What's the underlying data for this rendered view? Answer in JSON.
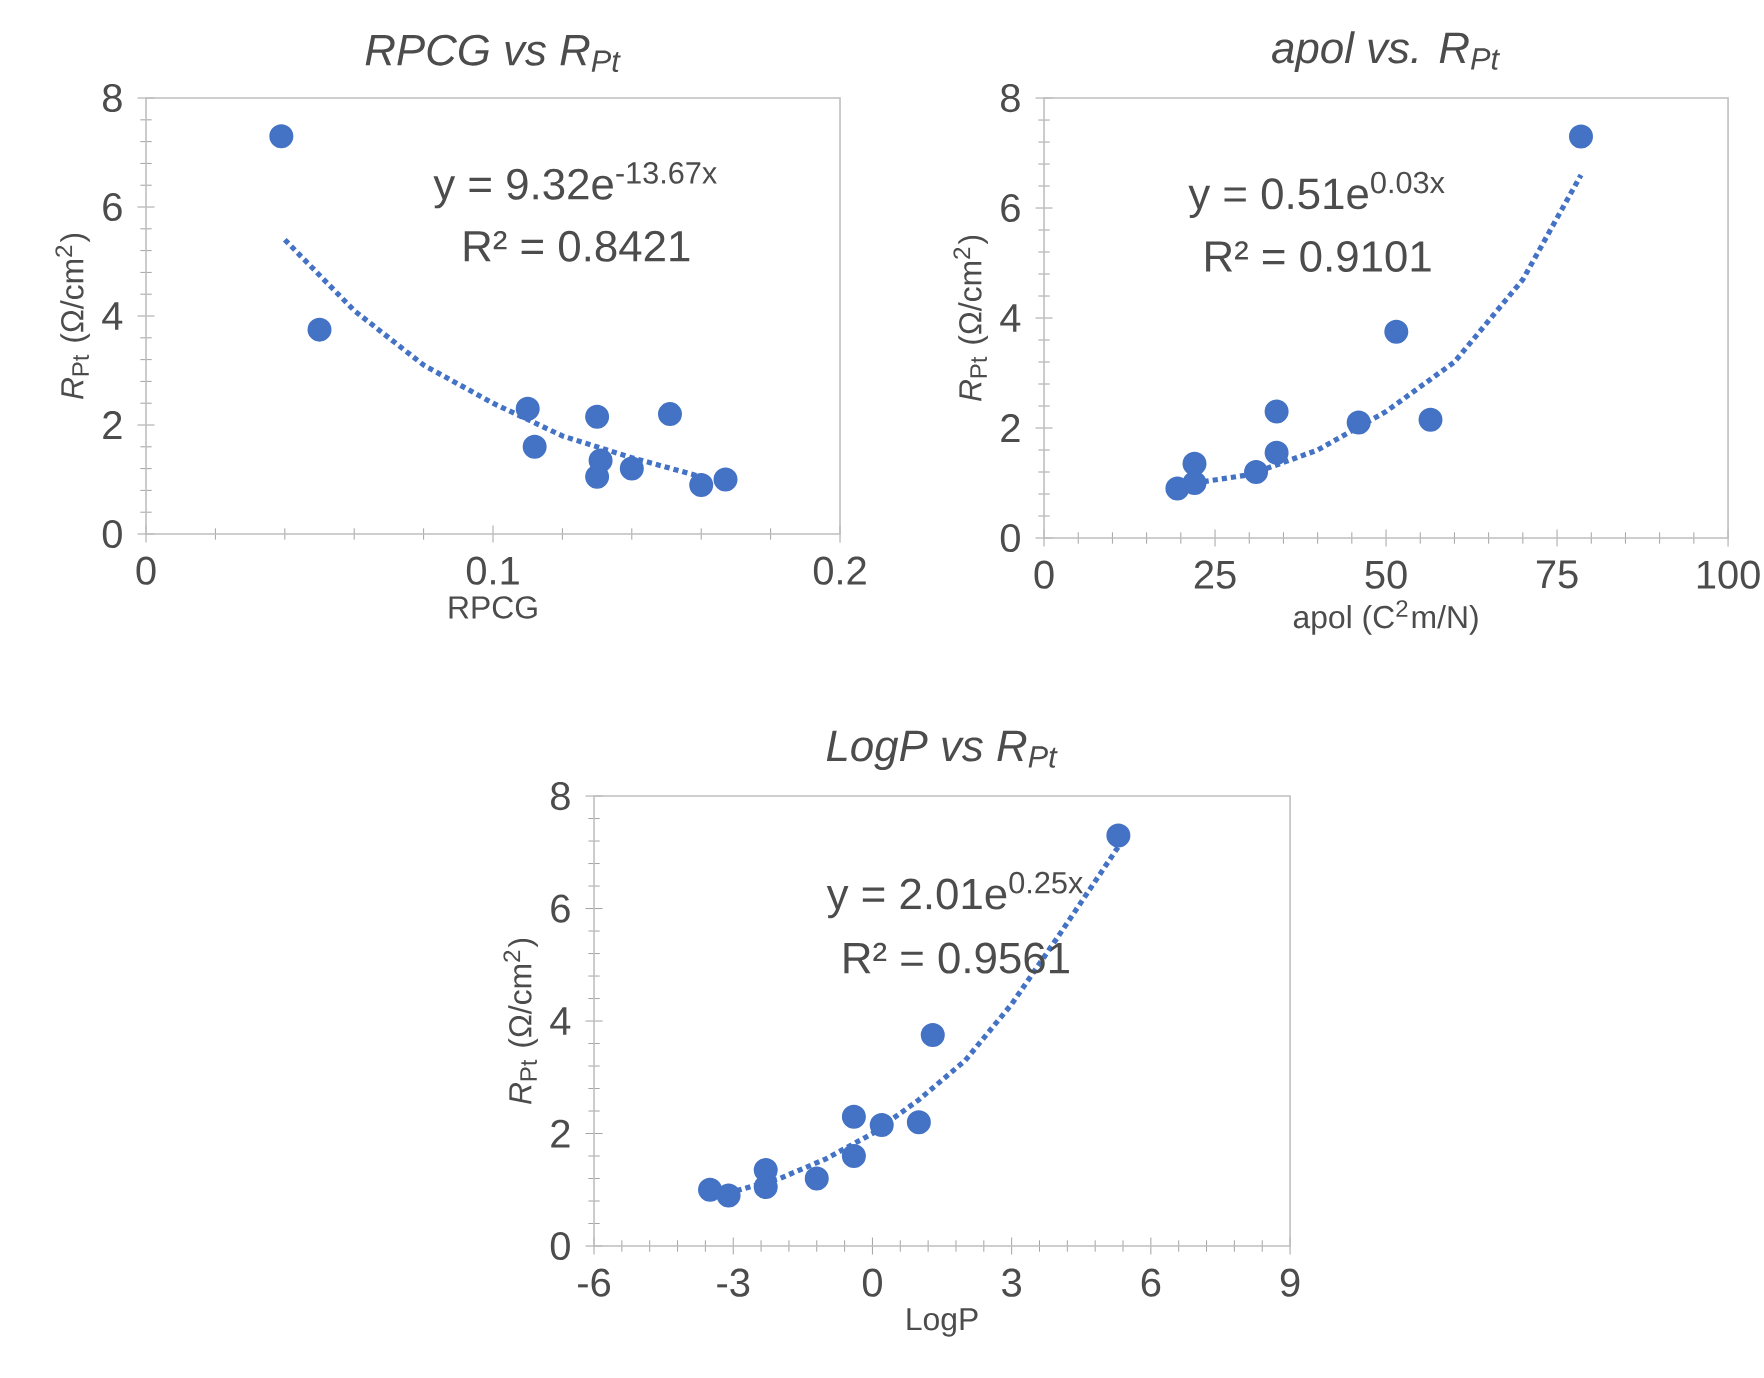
{
  "chart_data": [
    {
      "type": "scatter",
      "title": "*RPCG* vs *R*$_{Pt}$",
      "xlabel": "RPCG",
      "ylabel": "*R*$_{Pt}$ (Ω/cm$^{2}$)",
      "marker": "circle",
      "xlim": [
        0,
        0.2
      ],
      "xticks": [
        0,
        0.1,
        0.2
      ],
      "ylim": [
        0,
        8
      ],
      "yticks": [
        0,
        2,
        4,
        6,
        8
      ],
      "annotations": [
        "y = 9.32e$^{-13.67x}$",
        "R² = 0.8421"
      ],
      "series": [
        {
          "color": "#4472c4",
          "x": [
            0.039,
            0.05,
            0.11,
            0.112,
            0.13,
            0.13,
            0.131,
            0.14,
            0.151,
            0.16,
            0.167
          ],
          "values": [
            7.3,
            3.75,
            2.3,
            1.6,
            2.15,
            1.05,
            1.35,
            1.2,
            2.2,
            0.9,
            1.0
          ]
        },
        {
          "type": "line",
          "color": "#4472c4",
          "line_style": "dotted",
          "marker": "none",
          "x": [
            0.04,
            0.06,
            0.08,
            0.1,
            0.12,
            0.14,
            0.16
          ],
          "values": [
            5.4,
            4.1,
            3.1,
            2.4,
            1.8,
            1.4,
            1.05
          ]
        }
      ]
    },
    {
      "type": "scatter",
      "title": "*apol* vs. *R*$_{Pt}$",
      "xlabel": "apol (C$^{2}$m/N)",
      "ylabel": "*R*$_{Pt}$ (Ω/cm$^{2}$)",
      "marker": "circle",
      "xlim": [
        0,
        100
      ],
      "xticks": [
        0,
        25,
        50,
        75,
        100
      ],
      "ylim": [
        0,
        8
      ],
      "yticks": [
        0,
        2,
        4,
        6,
        8
      ],
      "annotations": [
        "y = 0.51e$^{0.03x}$",
        "R² = 0.9101"
      ],
      "series": [
        {
          "color": "#4472c4",
          "x": [
            19.5,
            22,
            22,
            31,
            34,
            34,
            46,
            51.5,
            56.5,
            78.5
          ],
          "values": [
            0.9,
            1.35,
            1.0,
            1.2,
            2.3,
            1.55,
            2.1,
            3.75,
            2.15,
            7.3
          ]
        },
        {
          "type": "line",
          "color": "#4472c4",
          "line_style": "dotted",
          "marker": "none",
          "x": [
            22,
            30,
            40,
            50,
            60,
            70,
            78.5
          ],
          "values": [
            1.0,
            1.15,
            1.6,
            2.3,
            3.2,
            4.7,
            6.6
          ]
        }
      ]
    },
    {
      "type": "scatter",
      "title": "*LogP* vs *R*$_{Pt}$",
      "xlabel": "LogP",
      "ylabel": "*R*$_{Pt}$ (Ω/cm$^{2}$)",
      "marker": "circle",
      "xlim": [
        -6,
        9
      ],
      "xticks": [
        -6,
        -3,
        0,
        3,
        6,
        9
      ],
      "ylim": [
        0,
        8
      ],
      "yticks": [
        0,
        2,
        4,
        6,
        8
      ],
      "annotations": [
        "y = 2.01e$^{0.25x}$",
        "R² = 0.9561"
      ],
      "series": [
        {
          "color": "#4472c4",
          "x": [
            -3.5,
            -3.1,
            -2.3,
            -2.3,
            -1.2,
            -0.4,
            -0.4,
            0.2,
            1.0,
            1.3,
            5.3
          ],
          "values": [
            1.0,
            0.9,
            1.35,
            1.05,
            1.2,
            2.3,
            1.6,
            2.15,
            2.2,
            3.75,
            7.3
          ]
        },
        {
          "type": "line",
          "color": "#4472c4",
          "line_style": "dotted",
          "marker": "none",
          "x": [
            -3.5,
            -2,
            -1,
            0,
            1,
            2,
            3,
            4,
            5.3
          ],
          "values": [
            0.85,
            1.2,
            1.55,
            2.0,
            2.6,
            3.3,
            4.3,
            5.5,
            7.1
          ]
        }
      ]
    }
  ]
}
